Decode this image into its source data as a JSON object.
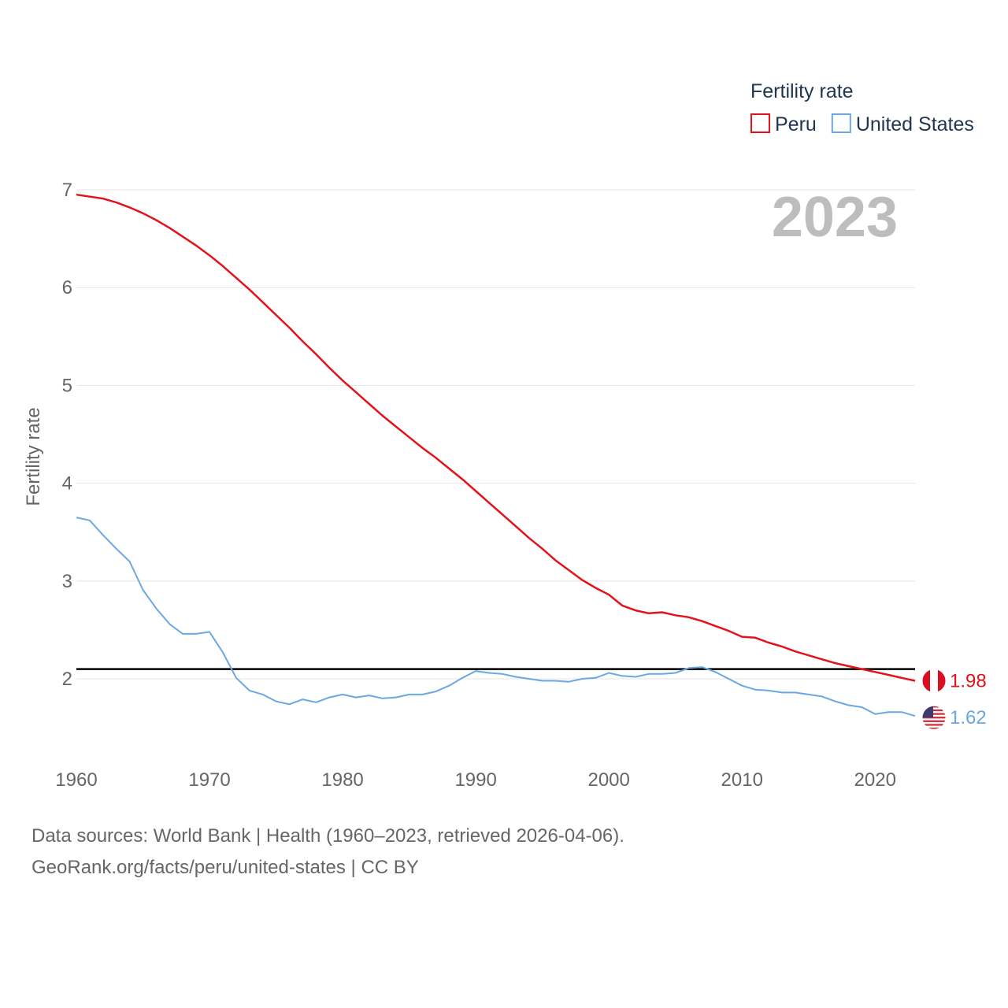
{
  "chart_data": {
    "type": "line",
    "title": "",
    "xlabel": "",
    "ylabel": "Fertility rate",
    "year_label": "2023",
    "xlim": [
      1960,
      2023
    ],
    "ylim": [
      1.35,
      7
    ],
    "x_ticks": [
      1960,
      1970,
      1980,
      1990,
      2000,
      2010,
      2020
    ],
    "y_ticks": [
      2,
      3,
      4,
      5,
      6,
      7
    ],
    "reference_line": 2.1,
    "legend": {
      "title": "Fertility rate",
      "position": "top-right"
    },
    "x": [
      1960,
      1961,
      1962,
      1963,
      1964,
      1965,
      1966,
      1967,
      1968,
      1969,
      1970,
      1971,
      1972,
      1973,
      1974,
      1975,
      1976,
      1977,
      1978,
      1979,
      1980,
      1981,
      1982,
      1983,
      1984,
      1985,
      1986,
      1987,
      1988,
      1989,
      1990,
      1991,
      1992,
      1993,
      1994,
      1995,
      1996,
      1997,
      1998,
      1999,
      2000,
      2001,
      2002,
      2003,
      2004,
      2005,
      2006,
      2007,
      2008,
      2009,
      2010,
      2011,
      2012,
      2013,
      2014,
      2015,
      2016,
      2017,
      2018,
      2019,
      2020,
      2021,
      2022,
      2023
    ],
    "series": [
      {
        "name": "Peru",
        "color": "#e3121b",
        "end_label": "1.98",
        "values": [
          6.95,
          6.93,
          6.91,
          6.87,
          6.82,
          6.76,
          6.69,
          6.61,
          6.52,
          6.43,
          6.33,
          6.22,
          6.1,
          5.98,
          5.85,
          5.72,
          5.59,
          5.45,
          5.32,
          5.18,
          5.05,
          4.93,
          4.81,
          4.69,
          4.58,
          4.47,
          4.36,
          4.26,
          4.15,
          4.04,
          3.92,
          3.8,
          3.68,
          3.56,
          3.44,
          3.33,
          3.21,
          3.11,
          3.01,
          2.93,
          2.86,
          2.75,
          2.7,
          2.67,
          2.68,
          2.65,
          2.63,
          2.59,
          2.54,
          2.49,
          2.43,
          2.42,
          2.37,
          2.33,
          2.28,
          2.24,
          2.2,
          2.16,
          2.13,
          2.1,
          2.07,
          2.04,
          2.01,
          1.98
        ]
      },
      {
        "name": "United States",
        "color": "#6aa7e3",
        "end_label": "1.62",
        "values": [
          3.65,
          3.62,
          3.47,
          3.33,
          3.2,
          2.91,
          2.72,
          2.56,
          2.46,
          2.46,
          2.48,
          2.27,
          2.01,
          1.88,
          1.84,
          1.77,
          1.74,
          1.79,
          1.76,
          1.81,
          1.84,
          1.81,
          1.83,
          1.8,
          1.81,
          1.84,
          1.84,
          1.87,
          1.93,
          2.01,
          2.08,
          2.06,
          2.05,
          2.02,
          2.0,
          1.98,
          1.98,
          1.97,
          2.0,
          2.01,
          2.06,
          2.03,
          2.02,
          2.05,
          2.05,
          2.06,
          2.11,
          2.12,
          2.07,
          2.0,
          1.93,
          1.89,
          1.88,
          1.86,
          1.86,
          1.84,
          1.82,
          1.77,
          1.73,
          1.71,
          1.64,
          1.66,
          1.66,
          1.62
        ]
      }
    ]
  },
  "footer": {
    "line1": "Data sources: World Bank | Health (1960–2023, retrieved 2026-04-06).",
    "line2": "GeoRank.org/facts/peru/united-states | CC BY"
  }
}
